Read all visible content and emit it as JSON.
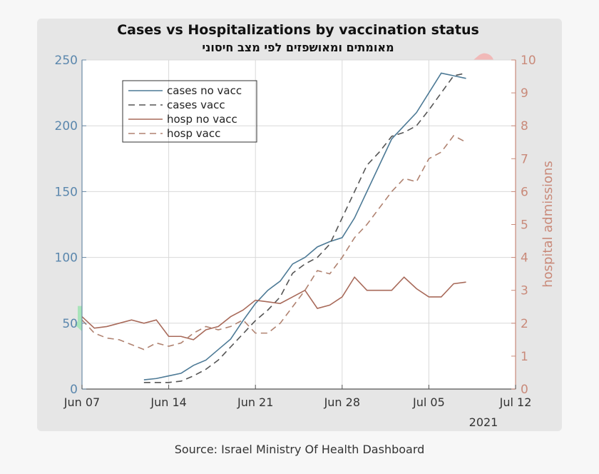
{
  "chart_data": {
    "type": "line",
    "title": "Cases vs Hospitalizations by vaccination status",
    "subtitle": "מאומתים ומאושפזים לפי מצב חיסוני",
    "xlabel": "",
    "ylabel_left": "",
    "ylabel_right": "hospital admissions",
    "x_tick_labels": [
      "Jun 07",
      "Jun 14",
      "Jun 21",
      "Jun 28",
      "Jul 05",
      "Jul 12"
    ],
    "x_year_label": "2021",
    "xlim": [
      0,
      35
    ],
    "ylim_left": [
      0,
      250
    ],
    "ylim_right": [
      0,
      10
    ],
    "y_left_ticks": [
      0,
      50,
      100,
      150,
      200,
      250
    ],
    "y_right_ticks": [
      0,
      1,
      2,
      3,
      4,
      5,
      6,
      7,
      8,
      9,
      10
    ],
    "grid": true,
    "legend_position": "top-left",
    "legend": [
      "cases no vacc",
      "cases vacc",
      "hosp no vacc",
      "hosp vacc"
    ],
    "series": [
      {
        "name": "cases no vacc",
        "axis": "left",
        "style": "solid",
        "color": "#4d7a96",
        "x": [
          5,
          6,
          7,
          8,
          9,
          10,
          11,
          12,
          13,
          14,
          15,
          16,
          17,
          18,
          19,
          20,
          21,
          22,
          23,
          24,
          25,
          26,
          27,
          28,
          29,
          30,
          31
        ],
        "values": [
          7,
          8,
          10,
          12,
          18,
          22,
          30,
          38,
          52,
          65,
          75,
          82,
          95,
          100,
          108,
          112,
          115,
          130,
          150,
          170,
          190,
          200,
          210,
          225,
          240,
          238,
          236
        ]
      },
      {
        "name": "cases vacc",
        "axis": "left",
        "style": "dashed",
        "color": "#555555",
        "x": [
          5,
          6,
          7,
          8,
          9,
          10,
          11,
          12,
          13,
          14,
          15,
          16,
          17,
          18,
          19,
          20,
          21,
          22,
          23,
          24,
          25,
          26,
          27,
          28,
          29,
          30,
          31
        ],
        "values": [
          5,
          5,
          5,
          6,
          10,
          15,
          22,
          32,
          42,
          52,
          60,
          70,
          88,
          95,
          100,
          110,
          130,
          150,
          170,
          180,
          192,
          195,
          200,
          212,
          225,
          238,
          240
        ]
      },
      {
        "name": "hosp no vacc",
        "axis": "right",
        "style": "solid",
        "color": "#a86a5a",
        "x": [
          0,
          1,
          2,
          3,
          4,
          5,
          6,
          7,
          8,
          9,
          10,
          11,
          12,
          13,
          14,
          15,
          16,
          17,
          18,
          19,
          20,
          21,
          22,
          23,
          24,
          25,
          26,
          27,
          28,
          29,
          30,
          31
        ],
        "values": [
          2.2,
          1.85,
          1.9,
          2.0,
          2.1,
          2.0,
          2.1,
          1.6,
          1.6,
          1.5,
          1.8,
          1.9,
          2.2,
          2.4,
          2.7,
          2.65,
          2.6,
          2.8,
          3.0,
          2.45,
          2.55,
          2.8,
          3.4,
          3.0,
          3.0,
          3.0,
          3.4,
          3.05,
          2.8,
          2.8,
          3.2,
          3.25
        ]
      },
      {
        "name": "hosp vacc",
        "axis": "right",
        "style": "dashed",
        "color": "#b08270",
        "x": [
          0,
          1,
          2,
          3,
          4,
          5,
          6,
          7,
          8,
          9,
          10,
          11,
          12,
          13,
          14,
          15,
          16,
          17,
          18,
          19,
          20,
          21,
          22,
          23,
          24,
          25,
          26,
          27,
          28,
          29,
          30,
          31
        ],
        "values": [
          2.1,
          1.7,
          1.55,
          1.5,
          1.35,
          1.2,
          1.4,
          1.3,
          1.4,
          1.7,
          1.9,
          1.8,
          1.9,
          2.1,
          1.7,
          1.7,
          2.0,
          2.5,
          3.0,
          3.6,
          3.5,
          4.0,
          4.6,
          5.0,
          5.5,
          6.0,
          6.4,
          6.3,
          7.0,
          7.2,
          7.7,
          7.5
        ]
      }
    ],
    "highlight_colors": {
      "red": "#f4a9a8",
      "green": "#8fe3a6"
    }
  },
  "source": "Source: Israel Ministry Of Health Dashboard"
}
